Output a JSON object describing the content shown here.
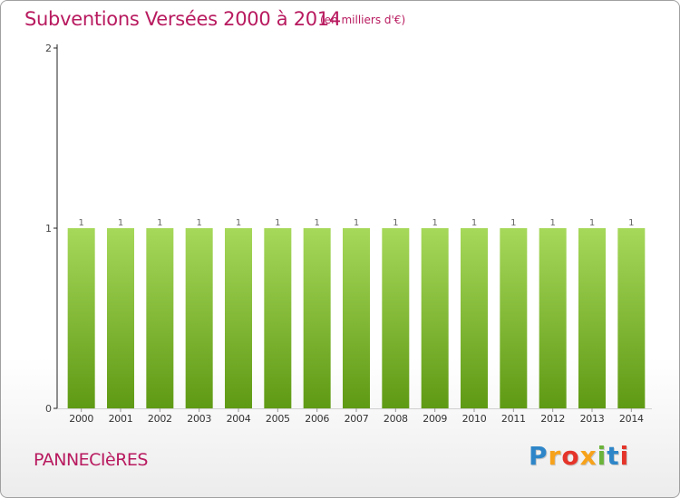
{
  "header": {
    "title": "Subventions Versées 2000 à 2014",
    "unit": "(en milliers d'€)"
  },
  "footer": {
    "commune": "PANNECIèRES",
    "logo": "Proxiti",
    "logo_colors": [
      "#2e86c8",
      "#f7a21b",
      "#e5342a",
      "#f7a21b",
      "#6bb33a",
      "#2e86c8",
      "#e5342a"
    ]
  },
  "colors": {
    "title": "#b81a5f",
    "bar_top": "#a6d85a",
    "bar_bottom": "#5f9a14"
  },
  "chart_data": {
    "type": "bar",
    "title": "Subventions Versées 2000 à 2014",
    "categories": [
      "2000",
      "2001",
      "2002",
      "2003",
      "2004",
      "2005",
      "2006",
      "2007",
      "2008",
      "2009",
      "2010",
      "2011",
      "2012",
      "2013",
      "2014"
    ],
    "values": [
      1,
      1,
      1,
      1,
      1,
      1,
      1,
      1,
      1,
      1,
      1,
      1,
      1,
      1,
      1
    ],
    "data_labels": [
      "1",
      "1",
      "1",
      "1",
      "1",
      "1",
      "1",
      "1",
      "1",
      "1",
      "1",
      "1",
      "1",
      "1",
      "1"
    ],
    "yticks": [
      "0",
      "1",
      "2"
    ],
    "ylim": [
      0,
      2
    ],
    "xlabel": "",
    "ylabel": "",
    "grid": false
  }
}
